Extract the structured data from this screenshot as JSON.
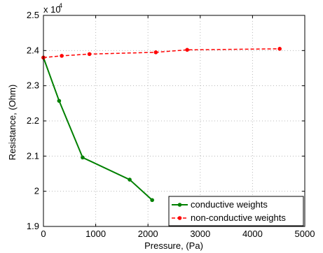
{
  "chart_data": {
    "type": "line",
    "xlabel": "Pressure, (Pa)",
    "ylabel": "Resistance, (Ohm)",
    "y_exponent_label": "x 10",
    "y_exponent_power": "4",
    "xlim": [
      0,
      5000
    ],
    "ylim": [
      1.9,
      2.5
    ],
    "x_ticks": [
      0,
      1000,
      2000,
      3000,
      4000,
      5000
    ],
    "y_ticks": [
      1.9,
      2,
      2.1,
      2.2,
      2.3,
      2.4,
      2.5
    ],
    "x_tick_labels": [
      "0",
      "1000",
      "2000",
      "3000",
      "4000",
      "5000"
    ],
    "y_tick_labels": [
      "1.9",
      "2",
      "2.1",
      "2.2",
      "2.3",
      "2.4",
      "2.5"
    ],
    "grid": true,
    "legend_position": "bottom-right",
    "series": [
      {
        "name": "conductive weights",
        "color": "#008000",
        "line_style": "solid",
        "marker": "circle",
        "x": [
          0,
          300,
          750,
          1650,
          2080
        ],
        "y": [
          2.38,
          2.257,
          2.096,
          2.033,
          1.975
        ]
      },
      {
        "name": "non-conductive weights",
        "color": "#ff0000",
        "line_style": "dashed",
        "marker": "circle",
        "x": [
          0,
          350,
          880,
          2150,
          2750,
          4520
        ],
        "y": [
          2.38,
          2.385,
          2.39,
          2.395,
          2.402,
          2.405
        ]
      }
    ]
  }
}
